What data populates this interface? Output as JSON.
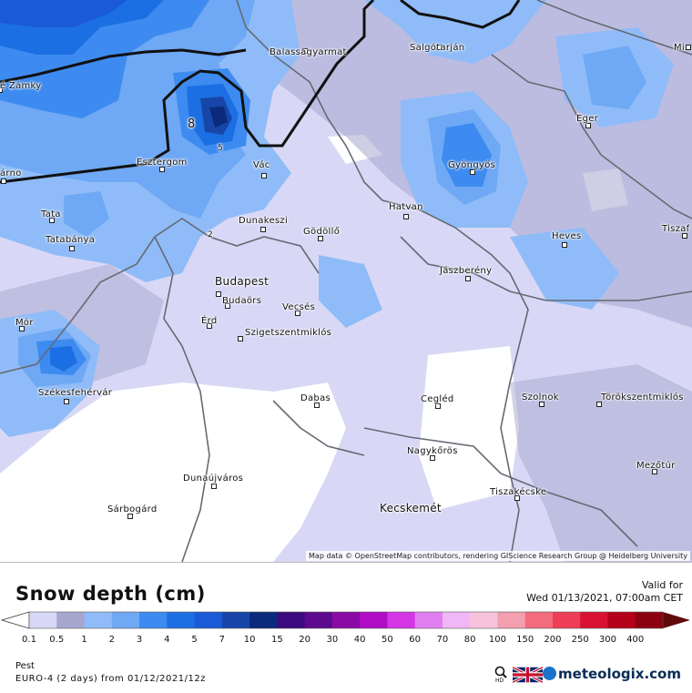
{
  "map": {
    "cities": [
      {
        "name": "Balassagyarmat",
        "dot": [
          335,
          56
        ],
        "label": [
          296,
          52
        ]
      },
      {
        "name": "Salgótarján",
        "dot": [
          482,
          52
        ],
        "label": [
          450,
          47
        ]
      },
      {
        "name": "Mi",
        "dot": [
          756,
          52
        ],
        "label": [
          740,
          47
        ]
      },
      {
        "name": "é Zámky",
        "dot": [
          0,
          99
        ],
        "label": [
          0,
          89
        ]
      },
      {
        "name": "Eger",
        "dot": [
          646,
          138
        ],
        "label": [
          633,
          125
        ]
      },
      {
        "name": "Esztergom",
        "dot": [
          178,
          186
        ],
        "label": [
          150,
          173
        ]
      },
      {
        "name": "Vác",
        "dot": [
          290,
          193
        ],
        "label": [
          278,
          176
        ]
      },
      {
        "name": "Gyöngyös",
        "dot": [
          519,
          189
        ],
        "label": [
          492,
          176
        ]
      },
      {
        "name": "árno",
        "dot": [
          4,
          199
        ],
        "label": [
          0,
          185
        ]
      },
      {
        "name": "Hatvan",
        "dot": [
          446,
          238
        ],
        "label": [
          427,
          222
        ]
      },
      {
        "name": "Tata",
        "dot": [
          57,
          242
        ],
        "label": [
          45,
          230
        ]
      },
      {
        "name": "Dunakeszi",
        "dot": [
          289,
          252
        ],
        "label": [
          262,
          237
        ]
      },
      {
        "name": "Gödöllő",
        "dot": [
          352,
          262
        ],
        "label": [
          333,
          249
        ]
      },
      {
        "name": "Tiszaf",
        "dot": [
          752,
          259
        ],
        "label": [
          727,
          246
        ]
      },
      {
        "name": "Heves",
        "dot": [
          620,
          269
        ],
        "label": [
          606,
          254
        ]
      },
      {
        "name": "Tatabánya",
        "dot": [
          79,
          273
        ],
        "label": [
          50,
          258
        ]
      },
      {
        "name": "Jászberény",
        "dot": [
          514,
          306
        ],
        "label": [
          483,
          292
        ]
      },
      {
        "name": "Budapest",
        "dot": [
          240,
          323
        ],
        "label": [
          236,
          302
        ]
      },
      {
        "name": "Budaörs",
        "dot": [
          250,
          336
        ],
        "label": [
          244,
          325
        ]
      },
      {
        "name": "Vecsés",
        "dot": [
          327,
          344
        ],
        "label": [
          310,
          332
        ]
      },
      {
        "name": "Érd",
        "dot": [
          230,
          358
        ],
        "label": [
          221,
          347
        ]
      },
      {
        "name": "Mór",
        "dot": [
          24,
          361
        ],
        "label": [
          17,
          349
        ]
      },
      {
        "name": "Szigetszentmiklós",
        "dot": [
          264,
          372
        ],
        "label": [
          269,
          360
        ]
      },
      {
        "name": "Székesfehérvár",
        "dot": [
          73,
          441
        ],
        "label": [
          42,
          426
        ]
      },
      {
        "name": "Dabas",
        "dot": [
          348,
          445
        ],
        "label": [
          330,
          432
        ]
      },
      {
        "name": "Cegléd",
        "dot": [
          481,
          446
        ],
        "label": [
          462,
          433
        ]
      },
      {
        "name": "Szolnok",
        "dot": [
          595,
          444
        ],
        "label": [
          573,
          431
        ]
      },
      {
        "name": "Törökszentmiklós",
        "dot": [
          658,
          444
        ],
        "label": [
          660,
          431
        ]
      },
      {
        "name": "Nagykőrös",
        "dot": [
          475,
          503
        ],
        "label": [
          447,
          490
        ]
      },
      {
        "name": "Mezőtúr",
        "dot": [
          719,
          518
        ],
        "label": [
          699,
          506
        ]
      },
      {
        "name": "Dunaújváros",
        "dot": [
          235,
          534
        ],
        "label": [
          201,
          520
        ]
      },
      {
        "name": "Tiszakécske",
        "dot": [
          568,
          547
        ],
        "label": [
          538,
          535
        ]
      },
      {
        "name": "Kecskemét",
        "dot": [
          0,
          0
        ],
        "label": [
          417,
          551
        ]
      },
      {
        "name": "Sárbogárd",
        "dot": [
          143,
          567
        ],
        "label": [
          118,
          554
        ]
      }
    ],
    "contour_labels": [
      {
        "text": "8",
        "pos": [
          206,
          129
        ]
      },
      {
        "text": "5",
        "pos": [
          239,
          158
        ]
      },
      {
        "text": "2",
        "pos": [
          228,
          253
        ]
      }
    ],
    "attribution": "Map data © OpenStreetMap contributors, rendering GIScience Research Group @ Heidelberg University"
  },
  "legend": {
    "title": "Snow depth (cm)",
    "valid_label": "Valid for",
    "valid_time": "Wed 01/13/2021, 07:00am CET",
    "ticks": [
      "0.1",
      "0.5",
      "1",
      "2",
      "3",
      "4",
      "5",
      "7",
      "10",
      "15",
      "20",
      "30",
      "40",
      "50",
      "60",
      "70",
      "80",
      "100",
      "150",
      "200",
      "250",
      "300",
      "400"
    ],
    "colors": [
      "#d8d8f6",
      "#a6a6ce",
      "#8fbcf8",
      "#6fa8f4",
      "#3d8bf0",
      "#1c6fe2",
      "#1a5ad6",
      "#1746a8",
      "#0b2a7b",
      "#3b0a7e",
      "#5e0a8e",
      "#8a0aa6",
      "#b00cc5",
      "#d436e6",
      "#e07ef0",
      "#f0b7f6",
      "#f6c2dc",
      "#f39fb0",
      "#f26c7e",
      "#ee3e55",
      "#d81230",
      "#b40018",
      "#8c0012",
      "#600a0a"
    ],
    "location": "Pest",
    "model": "EURO-4 (2 days) from 01/12/2021/12z",
    "brand": "meteologix.com"
  }
}
